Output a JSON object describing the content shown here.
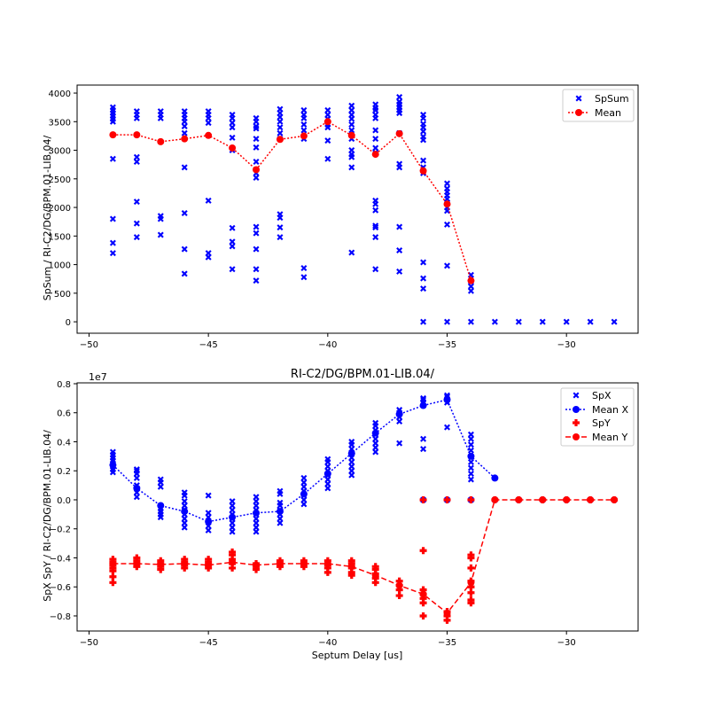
{
  "chart_data": [
    {
      "type": "scatter",
      "title": "",
      "xlabel": "",
      "ylabel": "SpSum / RI-C2/DG/BPM.01-LIB.04/",
      "xlim": [
        -50.5,
        -27
      ],
      "ylim": [
        -200,
        4140
      ],
      "xticks": [
        -50,
        -45,
        -40,
        -35,
        -30
      ],
      "xtick_labels": [
        "−50",
        "−45",
        "−40",
        "−35",
        "−30"
      ],
      "yticks": [
        0,
        500,
        1000,
        1500,
        2000,
        2500,
        3000,
        3500,
        4000
      ],
      "ytick_labels": [
        "0",
        "500",
        "1000",
        "1500",
        "2000",
        "2500",
        "3000",
        "3500",
        "4000"
      ],
      "legend": {
        "position": "top-right",
        "entries": [
          "SpSum",
          "Mean"
        ]
      },
      "colors": {
        "spsum": "#0000ff",
        "mean": "#ff0000"
      },
      "scatter": [
        {
          "x": -49,
          "y": [
            3750,
            3700,
            3650,
            3600,
            3550,
            3500,
            2850,
            1800,
            1380,
            1200
          ]
        },
        {
          "x": -48,
          "y": [
            3680,
            3620,
            3560,
            2880,
            2800,
            2100,
            1720,
            1480
          ]
        },
        {
          "x": -47,
          "y": [
            3680,
            3620,
            3560,
            1850,
            1800,
            1520
          ]
        },
        {
          "x": -46,
          "y": [
            3680,
            3620,
            3560,
            3500,
            3420,
            3300,
            2700,
            1900,
            1270,
            840
          ]
        },
        {
          "x": -45,
          "y": [
            3680,
            3620,
            3560,
            3480,
            2120,
            1200,
            1130
          ]
        },
        {
          "x": -44,
          "y": [
            3620,
            3560,
            3480,
            3400,
            3220,
            3000,
            1640,
            1400,
            1320,
            920
          ]
        },
        {
          "x": -43,
          "y": [
            3560,
            3500,
            3420,
            3380,
            3200,
            3050,
            2800,
            2600,
            2520,
            1660,
            1550,
            1270,
            920,
            720
          ]
        },
        {
          "x": -42,
          "y": [
            3720,
            3650,
            3580,
            3500,
            3400,
            3300,
            3200,
            1880,
            1820,
            1650,
            1480
          ]
        },
        {
          "x": -41,
          "y": [
            3700,
            3620,
            3560,
            3450,
            3350,
            3200,
            940,
            780
          ]
        },
        {
          "x": -40,
          "y": [
            3700,
            3620,
            3550,
            3450,
            3400,
            3170,
            2850
          ]
        },
        {
          "x": -39,
          "y": [
            3780,
            3700,
            3620,
            3550,
            3450,
            3350,
            3200,
            3000,
            2930,
            2880,
            2700,
            1210
          ]
        },
        {
          "x": -38,
          "y": [
            3800,
            3740,
            3700,
            3620,
            3560,
            3350,
            3200,
            3040,
            2960,
            2120,
            2060,
            1950,
            1680,
            1650,
            1480,
            920
          ]
        },
        {
          "x": -37,
          "y": [
            3930,
            3850,
            3800,
            3750,
            3700,
            3650,
            3300,
            2760,
            2700,
            1660,
            1250,
            880
          ]
        },
        {
          "x": -36,
          "y": [
            3620,
            3560,
            3460,
            3400,
            3330,
            3240,
            3180,
            2820,
            2700,
            2600,
            1040,
            760,
            580,
            0
          ]
        },
        {
          "x": -35,
          "y": [
            2420,
            2330,
            2270,
            2210,
            2150,
            2080,
            2000,
            1940,
            1700,
            980,
            0
          ]
        },
        {
          "x": -34,
          "y": [
            820,
            760,
            700,
            620,
            540,
            0
          ]
        },
        {
          "x": -33,
          "y": [
            0
          ]
        },
        {
          "x": -32,
          "y": [
            0
          ]
        },
        {
          "x": -31,
          "y": [
            0
          ]
        },
        {
          "x": -30,
          "y": [
            0
          ]
        },
        {
          "x": -29,
          "y": [
            0
          ]
        },
        {
          "x": -28,
          "y": [
            0
          ]
        }
      ],
      "mean": {
        "x": [
          -49,
          -48,
          -47,
          -46,
          -45,
          -44,
          -43,
          -42,
          -41,
          -40,
          -39,
          -38,
          -37,
          -36,
          -35,
          -34
        ],
        "y": [
          3270,
          3270,
          3150,
          3200,
          3260,
          3040,
          2660,
          3190,
          3250,
          3500,
          3260,
          2930,
          3290,
          2640,
          2060,
          720
        ]
      }
    },
    {
      "type": "scatter",
      "title": "RI-C2/DG/BPM.01-LIB.04/",
      "xlabel": "Septum Delay [us]",
      "ylabel": "SpX SpY / RI-C2/DG/BPM.01-LIB.04/",
      "y_scale_label": "1e7",
      "xlim": [
        -50.5,
        -27
      ],
      "ylim": [
        -0.904,
        0.806
      ],
      "xticks": [
        -50,
        -45,
        -40,
        -35,
        -30
      ],
      "xtick_labels": [
        "−50",
        "−45",
        "−40",
        "−35",
        "−30"
      ],
      "yticks": [
        -0.8,
        -0.6,
        -0.4,
        -0.2,
        0,
        0.2,
        0.4,
        0.6,
        0.8
      ],
      "ytick_labels": [
        "−0.8",
        "−0.6",
        "−0.4",
        "−0.2",
        "0.0",
        "0.2",
        "0.4",
        "0.6",
        "0.8"
      ],
      "legend": {
        "position": "top-right",
        "entries": [
          "SpX",
          "Mean X",
          "SpY",
          "Mean Y"
        ]
      },
      "colors": {
        "x": "#0000ff",
        "y": "#ff0000"
      },
      "spx": [
        {
          "x": -49,
          "y": [
            0.19,
            0.21,
            0.23,
            0.25,
            0.27,
            0.29,
            0.31,
            0.33
          ]
        },
        {
          "x": -48,
          "y": [
            0.02,
            0.05,
            0.08,
            0.1,
            0.15,
            0.18,
            0.2,
            0.21
          ]
        },
        {
          "x": -47,
          "y": [
            -0.12,
            -0.1,
            -0.08,
            -0.06,
            -0.04,
            0.09,
            0.12,
            0.14
          ]
        },
        {
          "x": -46,
          "y": [
            -0.19,
            -0.16,
            -0.13,
            -0.1,
            -0.07,
            -0.04,
            -0.01,
            0.03,
            0.05
          ]
        },
        {
          "x": -45,
          "y": [
            -0.21,
            -0.18,
            -0.15,
            -0.12,
            -0.09,
            0.03
          ]
        },
        {
          "x": -44,
          "y": [
            -0.22,
            -0.19,
            -0.16,
            -0.13,
            -0.1,
            -0.07,
            -0.04,
            -0.01
          ]
        },
        {
          "x": -43,
          "y": [
            -0.22,
            -0.19,
            -0.16,
            -0.13,
            -0.1,
            -0.07,
            -0.04,
            -0.01,
            0.02
          ]
        },
        {
          "x": -42,
          "y": [
            -0.16,
            -0.13,
            -0.1,
            -0.07,
            -0.04,
            -0.02,
            0.04,
            0.06
          ]
        },
        {
          "x": -41,
          "y": [
            -0.03,
            0,
            0.03,
            0.06,
            0.09,
            0.12,
            0.15
          ]
        },
        {
          "x": -40,
          "y": [
            0.08,
            0.11,
            0.14,
            0.17,
            0.2,
            0.23,
            0.26,
            0.28
          ]
        },
        {
          "x": -39,
          "y": [
            0.17,
            0.2,
            0.23,
            0.26,
            0.29,
            0.32,
            0.35,
            0.38,
            0.4
          ]
        },
        {
          "x": -38,
          "y": [
            0.33,
            0.36,
            0.39,
            0.42,
            0.45,
            0.48,
            0.51,
            0.53
          ]
        },
        {
          "x": -37,
          "y": [
            0.39,
            0.54,
            0.57,
            0.6,
            0.62
          ]
        },
        {
          "x": -36,
          "y": [
            0,
            0.35,
            0.42,
            0.65,
            0.67,
            0.69,
            0.7
          ]
        },
        {
          "x": -35,
          "y": [
            0,
            0.5,
            0.67,
            0.69,
            0.71,
            0.72
          ]
        },
        {
          "x": -34,
          "y": [
            0,
            0.14,
            0.18,
            0.22,
            0.26,
            0.3,
            0.34,
            0.38,
            0.42,
            0.45
          ]
        },
        {
          "x": -33,
          "y": [
            0
          ]
        },
        {
          "x": -32,
          "y": [
            0
          ]
        },
        {
          "x": -31,
          "y": [
            0
          ]
        },
        {
          "x": -30,
          "y": [
            0
          ]
        },
        {
          "x": -29,
          "y": [
            0
          ]
        },
        {
          "x": -28,
          "y": [
            0
          ]
        }
      ],
      "mean_x": {
        "x": [
          -49,
          -48,
          -47,
          -46,
          -45,
          -44,
          -43,
          -42,
          -41,
          -40,
          -39,
          -38,
          -37,
          -36,
          -35,
          -34,
          -33
        ],
        "y": [
          0.24,
          0.08,
          -0.04,
          -0.08,
          -0.15,
          -0.12,
          -0.09,
          -0.08,
          0.04,
          0.18,
          0.32,
          0.46,
          0.59,
          0.65,
          0.69,
          0.3,
          0.15
        ]
      },
      "spy": [
        {
          "x": -49,
          "y": [
            -0.57,
            -0.53,
            -0.49,
            -0.47,
            -0.45,
            -0.43,
            -0.41
          ]
        },
        {
          "x": -48,
          "y": [
            -0.46,
            -0.44,
            -0.42,
            -0.4
          ]
        },
        {
          "x": -47,
          "y": [
            -0.48,
            -0.46,
            -0.44,
            -0.42
          ]
        },
        {
          "x": -46,
          "y": [
            -0.47,
            -0.45,
            -0.43,
            -0.41
          ]
        },
        {
          "x": -45,
          "y": [
            -0.47,
            -0.45,
            -0.43,
            -0.41
          ]
        },
        {
          "x": -44,
          "y": [
            -0.47,
            -0.44,
            -0.41,
            -0.38,
            -0.36
          ]
        },
        {
          "x": -43,
          "y": [
            -0.48,
            -0.46,
            -0.44
          ]
        },
        {
          "x": -42,
          "y": [
            -0.46,
            -0.44,
            -0.42
          ]
        },
        {
          "x": -41,
          "y": [
            -0.46,
            -0.44,
            -0.42
          ]
        },
        {
          "x": -40,
          "y": [
            -0.5,
            -0.47,
            -0.45,
            -0.42
          ]
        },
        {
          "x": -39,
          "y": [
            -0.52,
            -0.5,
            -0.47,
            -0.44,
            -0.42
          ]
        },
        {
          "x": -38,
          "y": [
            -0.57,
            -0.54,
            -0.51,
            -0.48,
            -0.46
          ]
        },
        {
          "x": -37,
          "y": [
            -0.66,
            -0.62,
            -0.59,
            -0.56
          ]
        },
        {
          "x": -36,
          "y": [
            -0.8,
            -0.71,
            -0.68,
            -0.65,
            -0.62,
            -0.35,
            0
          ]
        },
        {
          "x": -35,
          "y": [
            -0.83,
            -0.8,
            -0.77,
            0
          ]
        },
        {
          "x": -34,
          "y": [
            -0.71,
            -0.69,
            -0.64,
            -0.6,
            -0.56,
            -0.47,
            -0.4,
            -0.38,
            0
          ]
        },
        {
          "x": -33,
          "y": [
            0
          ]
        },
        {
          "x": -32,
          "y": [
            0
          ]
        },
        {
          "x": -31,
          "y": [
            0
          ]
        },
        {
          "x": -30,
          "y": [
            0
          ]
        },
        {
          "x": -29,
          "y": [
            0
          ]
        },
        {
          "x": -28,
          "y": [
            0
          ]
        }
      ],
      "mean_y": {
        "x": [
          -49,
          -48,
          -47,
          -46,
          -45,
          -44,
          -43,
          -42,
          -41,
          -40,
          -39,
          -38,
          -37,
          -36,
          -35,
          -34,
          -33,
          -32,
          -31,
          -30,
          -29,
          -28
        ],
        "y": [
          -0.44,
          -0.44,
          -0.445,
          -0.44,
          -0.45,
          -0.43,
          -0.45,
          -0.44,
          -0.44,
          -0.44,
          -0.46,
          -0.52,
          -0.59,
          -0.65,
          -0.78,
          -0.57,
          0,
          0,
          0,
          0,
          0,
          0
        ]
      }
    }
  ]
}
